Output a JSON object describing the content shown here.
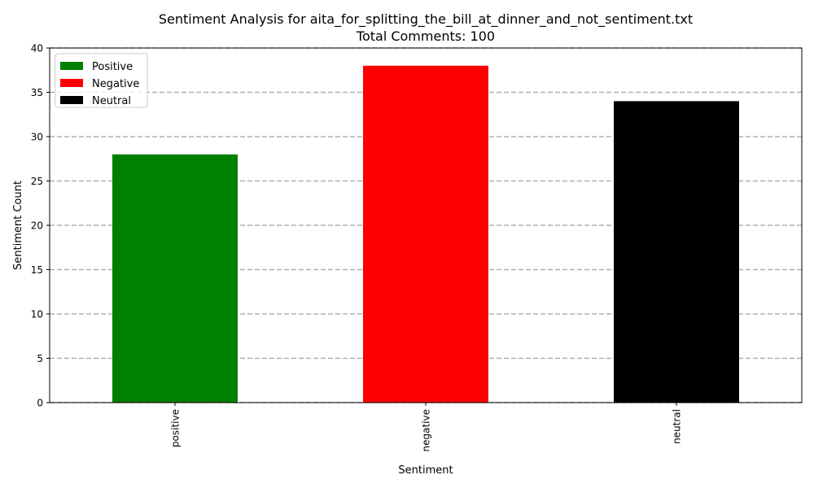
{
  "chart_data": {
    "type": "bar",
    "title_line1": "Sentiment Analysis for aita_for_splitting_the_bill_at_dinner_and_not_sentiment.txt",
    "title_line2": "Total Comments: 100",
    "xlabel": "Sentiment",
    "ylabel": "Sentiment Count",
    "categories": [
      "positive",
      "negative",
      "neutral"
    ],
    "values": [
      28,
      38,
      34
    ],
    "colors": [
      "#008000",
      "#ff0000",
      "#000000"
    ],
    "ylim": [
      0,
      40
    ],
    "yticks": [
      0,
      5,
      10,
      15,
      20,
      25,
      30,
      35,
      40
    ],
    "grid": "y-dashed",
    "legend": {
      "placement": "top-left",
      "entries": [
        {
          "label": "Positive",
          "color": "#008000"
        },
        {
          "label": "Negative",
          "color": "#ff0000"
        },
        {
          "label": "Neutral",
          "color": "#000000"
        }
      ]
    }
  }
}
